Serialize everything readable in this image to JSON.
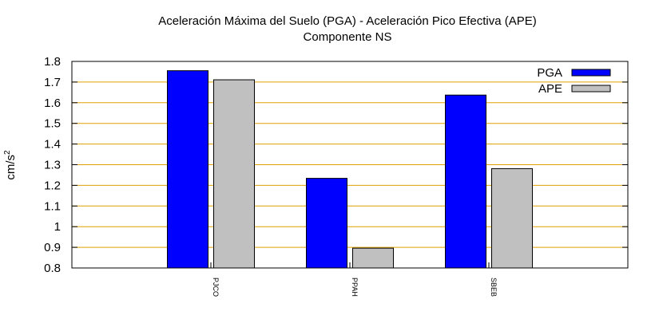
{
  "chart_data": {
    "type": "bar",
    "title": "Aceleración Máxima del Suelo (PGA) -  Aceleración Pico Efectiva (APE)",
    "subtitle": "Componente NS",
    "xlabel": "",
    "ylabel": "cm/s",
    "ylabel_superscript": "2",
    "categories": [
      "PJCO",
      "PPAH",
      "SBEB"
    ],
    "series": [
      {
        "name": "PGA",
        "values": [
          1.755,
          1.234,
          1.637
        ],
        "color": "#0000ff"
      },
      {
        "name": "APE",
        "values": [
          1.711,
          0.896,
          1.281
        ],
        "color": "#c0c0c0"
      }
    ],
    "ylim": [
      0.8,
      1.8
    ],
    "yticks": [
      "0.8",
      "0.9",
      "1",
      "1.1",
      "1.2",
      "1.3",
      "1.4",
      "1.5",
      "1.6",
      "1.7",
      "1.8"
    ],
    "grid": true,
    "grid_color": "#e0a000",
    "legend_position": "top-right"
  }
}
